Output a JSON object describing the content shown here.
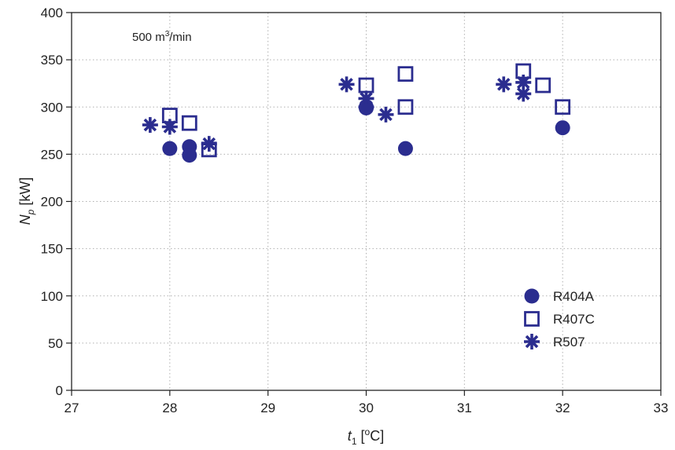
{
  "chart_data": {
    "type": "scatter",
    "xlabel": {
      "var": "t",
      "sub": "1",
      "unit_open": " [",
      "deg": "o",
      "unit_rest": "C]"
    },
    "ylabel": {
      "var": "N",
      "sub": "p",
      "unit": " [kW]"
    },
    "annotation": {
      "text": "500 m",
      "sup": "3",
      "rest": "/min"
    },
    "xlim": [
      27,
      33
    ],
    "ylim": [
      0,
      400
    ],
    "xticks": [
      "27",
      "28",
      "29",
      "30",
      "31",
      "32",
      "33"
    ],
    "yticks": [
      "0",
      "50",
      "100",
      "150",
      "200",
      "250",
      "300",
      "350",
      "400"
    ],
    "grid": true,
    "legend_position": "bottom-right",
    "series": [
      {
        "name": "R404A",
        "marker": "filled-circle",
        "color": "#2b2d8f",
        "points": [
          [
            28.0,
            256
          ],
          [
            28.2,
            258
          ],
          [
            28.2,
            249
          ],
          [
            30.0,
            299
          ],
          [
            30.0,
            300
          ],
          [
            30.4,
            256
          ],
          [
            32.0,
            278
          ]
        ]
      },
      {
        "name": "R407C",
        "marker": "open-square",
        "color": "#2b2d8f",
        "points": [
          [
            28.0,
            291
          ],
          [
            28.2,
            283
          ],
          [
            28.4,
            255
          ],
          [
            30.0,
            323
          ],
          [
            30.4,
            335
          ],
          [
            30.4,
            300
          ],
          [
            31.6,
            338
          ],
          [
            31.8,
            323
          ],
          [
            32.0,
            300
          ]
        ]
      },
      {
        "name": "R507",
        "marker": "asterisk",
        "color": "#2b2d8f",
        "points": [
          [
            27.8,
            281
          ],
          [
            28.0,
            279
          ],
          [
            28.4,
            261
          ],
          [
            29.8,
            324
          ],
          [
            30.0,
            309
          ],
          [
            30.0,
            300
          ],
          [
            30.2,
            292
          ],
          [
            31.4,
            324
          ],
          [
            31.6,
            326
          ],
          [
            31.6,
            314
          ]
        ]
      }
    ]
  }
}
